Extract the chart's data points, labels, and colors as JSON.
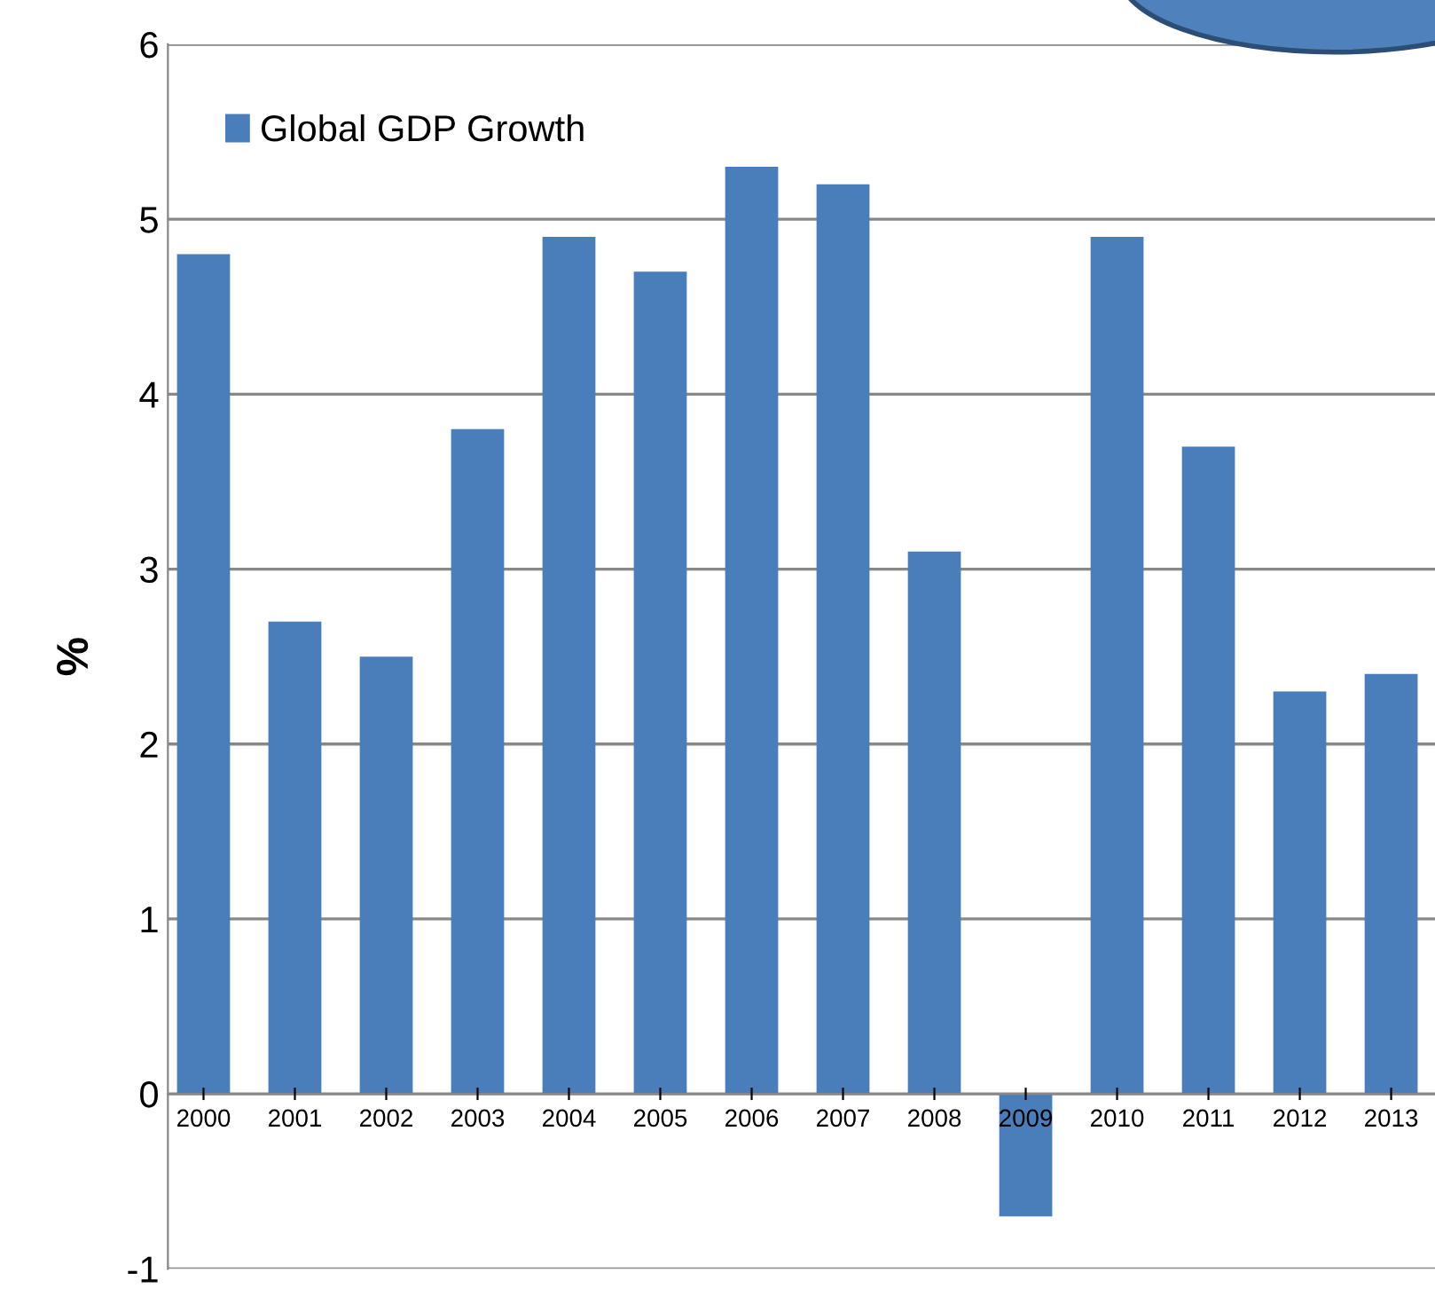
{
  "chart_data": {
    "type": "bar",
    "ylabel": "%",
    "categories": [
      "2000",
      "2001",
      "2002",
      "2003",
      "2004",
      "2005",
      "2006",
      "2007",
      "2008",
      "2009",
      "2010",
      "2011",
      "2012",
      "2013"
    ],
    "series": [
      {
        "name": "Global GDP Growth",
        "color": "#4a7ebb",
        "values": [
          4.8,
          2.7,
          2.5,
          3.8,
          4.9,
          4.7,
          5.3,
          5.2,
          3.1,
          -0.7,
          4.9,
          3.7,
          2.3,
          2.4
        ]
      }
    ],
    "ylim": [
      -1,
      6
    ],
    "yticks": [
      -1,
      0,
      1,
      2,
      3,
      4,
      5,
      6
    ],
    "grid": "y",
    "legend": "top left"
  }
}
